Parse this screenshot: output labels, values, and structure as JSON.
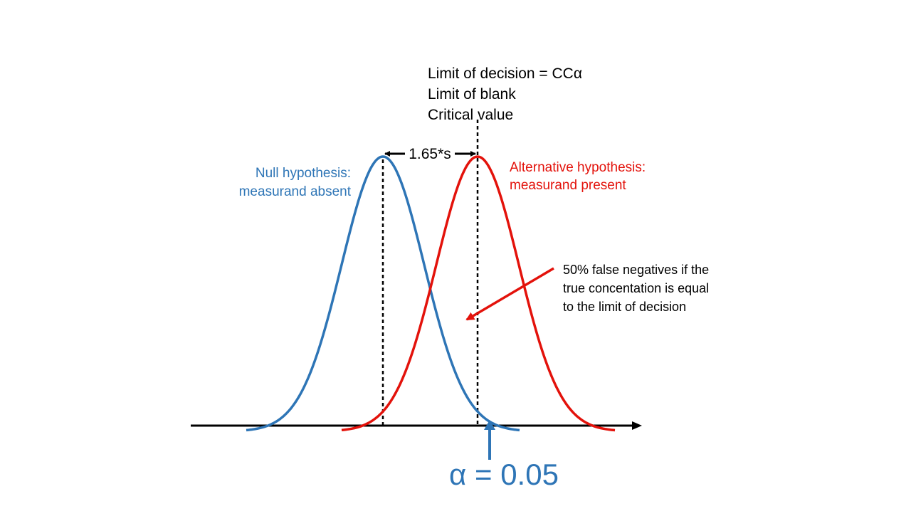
{
  "header_lines": [
    "Limit of decision = CCα",
    "Limit of blank",
    "Critical value"
  ],
  "spread_label": "1.65*s",
  "null_hypothesis": {
    "lines": [
      "Null hypothesis:",
      "measurand absent"
    ],
    "color": "#2e75b6"
  },
  "alternative_hypothesis": {
    "lines": [
      "Alternative hypothesis:",
      "measurand present"
    ],
    "color": "#e3120b"
  },
  "false_negative_note": [
    "50% false negatives if the",
    "true concentation is equal",
    "to the limit of decision"
  ],
  "alpha_label": "α = 0.05",
  "colors": {
    "axis": "#000000",
    "text": "#000000",
    "alpha": "#2e75b6"
  }
}
